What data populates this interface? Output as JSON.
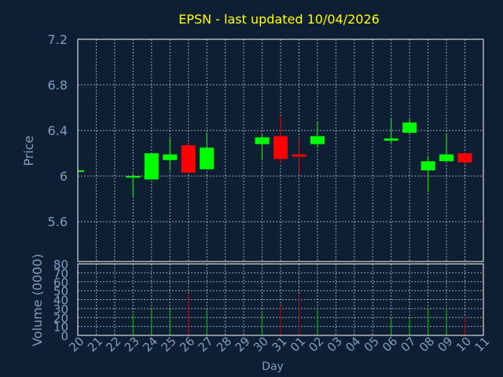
{
  "title": "EPSN - last updated 10/04/2026",
  "colors": {
    "background": "#0f1f33",
    "plot_border": "#ffffff",
    "grid": "#ffffff",
    "title": "#ffff00",
    "axis_text": "#7f9fbf",
    "up": "#00ff00",
    "down": "#ff0000",
    "wick_up": "#00ff00",
    "wick_down": "#ff0000",
    "volume_up": "#00c000",
    "volume_down": "#c00000"
  },
  "chart_data": [
    {
      "type": "candlestick",
      "title": "EPSN - last updated 10/04/2026",
      "ylabel": "Price",
      "ylim": [
        5.25,
        7.2
      ],
      "yticks": [
        5.6,
        6,
        6.4,
        6.8,
        7.2
      ],
      "ytick_labels": [
        "5.6",
        "6",
        "6.4",
        "6.8",
        "7.2"
      ],
      "categories": [
        "20",
        "21",
        "22",
        "23",
        "24",
        "25",
        "26",
        "27",
        "28",
        "29",
        "30",
        "31",
        "01",
        "02",
        "03",
        "04",
        "05",
        "06",
        "07",
        "08",
        "09",
        "10",
        "11"
      ],
      "candles": [
        {
          "x": "20",
          "open": 6.04,
          "high": 6.05,
          "low": 6.04,
          "close": 6.05
        },
        {
          "x": "23",
          "open": 6.0,
          "high": 6.02,
          "low": 5.82,
          "close": 6.0
        },
        {
          "x": "24",
          "open": 5.97,
          "high": 6.2,
          "low": 5.97,
          "close": 6.2
        },
        {
          "x": "25",
          "open": 6.14,
          "high": 6.33,
          "low": 6.05,
          "close": 6.19
        },
        {
          "x": "26",
          "open": 6.27,
          "high": 6.3,
          "low": 6.03,
          "close": 6.03
        },
        {
          "x": "27",
          "open": 6.06,
          "high": 6.38,
          "low": 6.06,
          "close": 6.25
        },
        {
          "x": "30",
          "open": 6.28,
          "high": 6.36,
          "low": 6.14,
          "close": 6.34
        },
        {
          "x": "31",
          "open": 6.35,
          "high": 6.53,
          "low": 6.11,
          "close": 6.15
        },
        {
          "x": "01",
          "open": 6.19,
          "high": 6.34,
          "low": 6.02,
          "close": 6.17
        },
        {
          "x": "02",
          "open": 6.28,
          "high": 6.47,
          "low": 6.25,
          "close": 6.35
        },
        {
          "x": "06",
          "open": 6.31,
          "high": 6.51,
          "low": 6.29,
          "close": 6.33
        },
        {
          "x": "07",
          "open": 6.38,
          "high": 6.5,
          "low": 6.37,
          "close": 6.47
        },
        {
          "x": "08",
          "open": 6.05,
          "high": 6.17,
          "low": 5.86,
          "close": 6.13
        },
        {
          "x": "09",
          "open": 6.13,
          "high": 6.37,
          "low": 6.13,
          "close": 6.19
        },
        {
          "x": "10",
          "open": 6.2,
          "high": 6.21,
          "low": 6.1,
          "close": 6.12
        }
      ]
    },
    {
      "type": "bar",
      "ylabel": "Volume (0000)",
      "xlabel": "Day",
      "ylim": [
        0,
        80
      ],
      "yticks": [
        0,
        10,
        20,
        30,
        40,
        50,
        60,
        70,
        80
      ],
      "ytick_labels": [
        "0",
        "10",
        "20",
        "30",
        "40",
        "50",
        "60",
        "70",
        "80"
      ],
      "categories": [
        "20",
        "21",
        "22",
        "23",
        "24",
        "25",
        "26",
        "27",
        "28",
        "29",
        "30",
        "31",
        "01",
        "02",
        "03",
        "04",
        "05",
        "06",
        "07",
        "08",
        "09",
        "10",
        "11"
      ],
      "bars": [
        {
          "x": "23",
          "value": 24,
          "direction": "up"
        },
        {
          "x": "24",
          "value": 31,
          "direction": "up"
        },
        {
          "x": "25",
          "value": 29,
          "direction": "up"
        },
        {
          "x": "26",
          "value": 47,
          "direction": "down"
        },
        {
          "x": "27",
          "value": 30,
          "direction": "up"
        },
        {
          "x": "30",
          "value": 28,
          "direction": "up"
        },
        {
          "x": "31",
          "value": 33,
          "direction": "down"
        },
        {
          "x": "01",
          "value": 45,
          "direction": "down"
        },
        {
          "x": "02",
          "value": 30,
          "direction": "up"
        },
        {
          "x": "06",
          "value": 20,
          "direction": "up"
        },
        {
          "x": "07",
          "value": 19,
          "direction": "up"
        },
        {
          "x": "08",
          "value": 31,
          "direction": "up"
        },
        {
          "x": "09",
          "value": 31,
          "direction": "up"
        },
        {
          "x": "10",
          "value": 21,
          "direction": "down"
        }
      ]
    }
  ]
}
